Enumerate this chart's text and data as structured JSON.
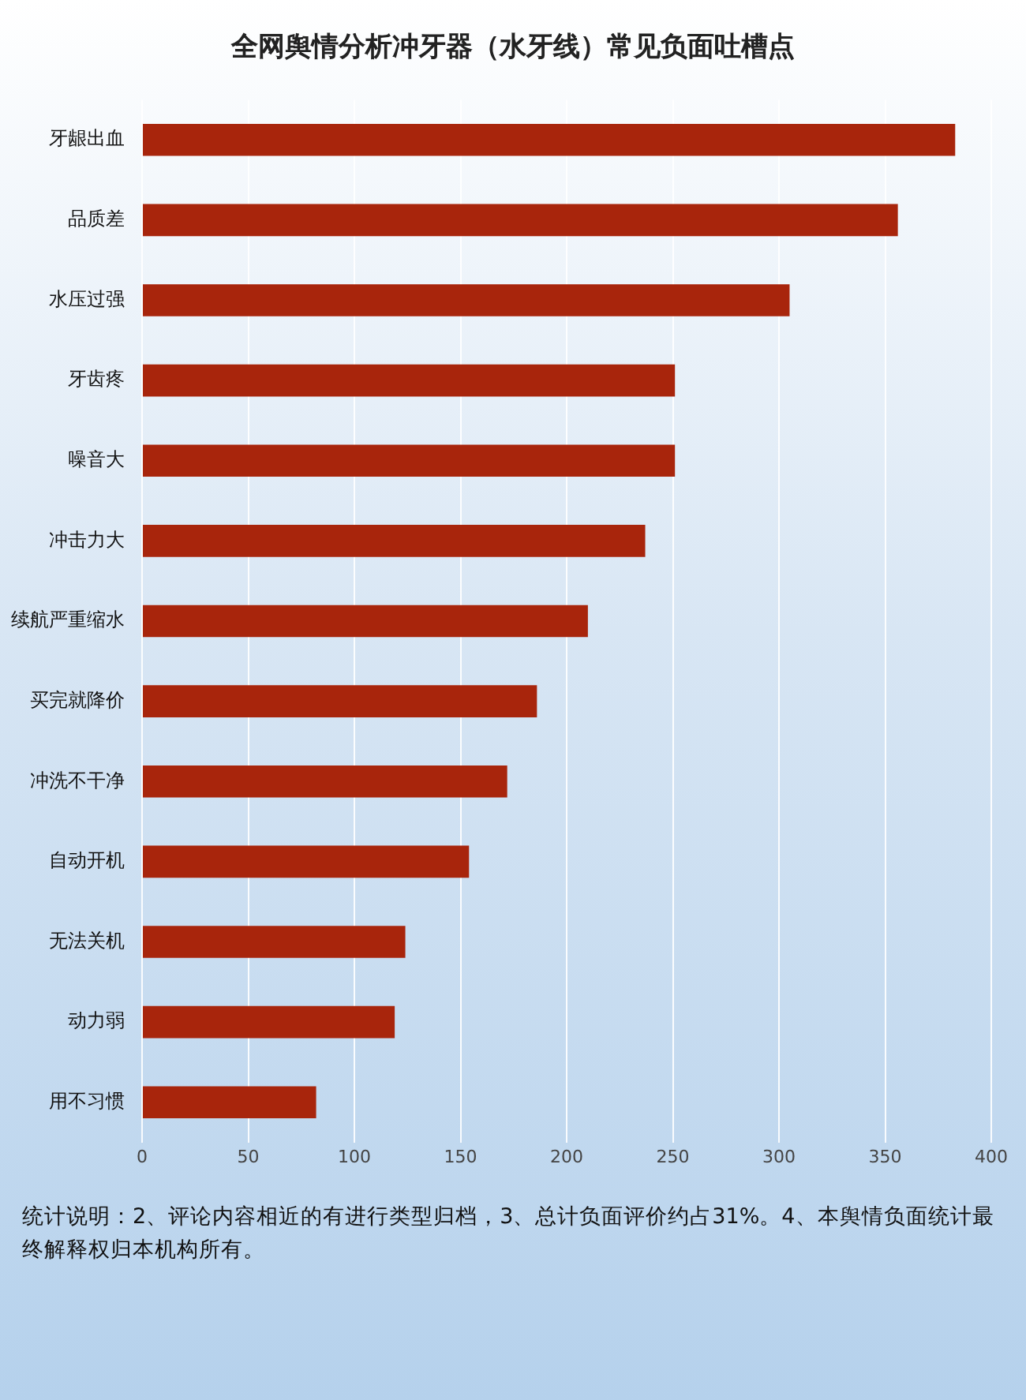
{
  "chart_data": {
    "type": "bar",
    "orientation": "horizontal",
    "title": "全网舆情分析冲牙器（水牙线）常见负面吐槽点",
    "categories": [
      "牙龈出血",
      "品质差",
      "水压过强",
      "牙齿疼",
      "噪音大",
      "冲击力大",
      "续航严重缩水",
      "买完就降价",
      "冲洗不干净",
      "自动开机",
      "无法关机",
      "动力弱",
      "用不习惯"
    ],
    "values": [
      383,
      356,
      305,
      251,
      251,
      237,
      210,
      186,
      172,
      154,
      124,
      119,
      82
    ],
    "color": "#a8250c",
    "xlim": [
      0,
      400
    ],
    "xticks": [
      0,
      50,
      100,
      150,
      200,
      250,
      300,
      350,
      400
    ],
    "grid": "x",
    "annotations": [
      "统计说明：2、评论内容相近的有进行类型归档，3、总计负面评价约占31%。4、本舆情负面统计最终解释权归本机构所有。"
    ]
  }
}
